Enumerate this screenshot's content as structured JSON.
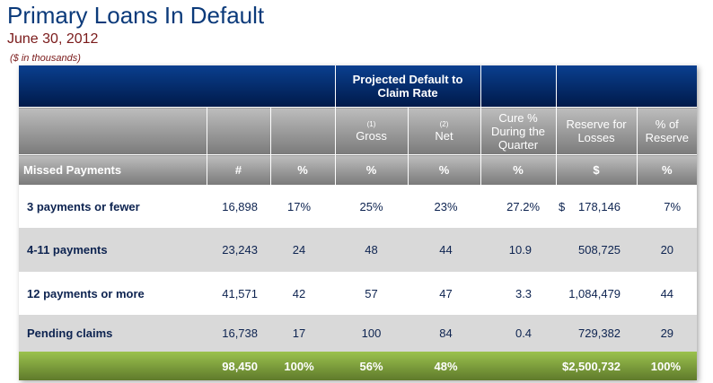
{
  "title": "Primary Loans In Default",
  "date": "June 30, 2012",
  "units": "($ in thousands)",
  "header": {
    "group": "Projected Default to Claim Rate",
    "gross": "Gross",
    "gross_note": "(1)",
    "net": "Net",
    "net_note": "(2)",
    "cure": "Cure % During the Quarter",
    "reserve": "Reserve for Losses",
    "pct_reserve": "% of Reserve",
    "missed": "Missed Payments",
    "units": [
      "#",
      "%",
      "%",
      "%",
      "%",
      "$",
      "%"
    ]
  },
  "rows": [
    {
      "label": "3 payments or fewer",
      "count": "16,898",
      "pct": "17%",
      "gross": "25%",
      "net": "23%",
      "cure": "27.2%",
      "dollar": "$",
      "reserve": "178,146",
      "pct_reserve": "7%"
    },
    {
      "label": "4-11 payments",
      "count": "23,243",
      "pct": "24",
      "gross": "48",
      "net": "44",
      "cure": "10.9",
      "reserve": "508,725",
      "pct_reserve": "20"
    },
    {
      "label": "12 payments or more",
      "count": "41,571",
      "pct": "42",
      "gross": "57",
      "net": "47",
      "cure": "3.3",
      "reserve": "1,084,479",
      "pct_reserve": "44"
    },
    {
      "label": "Pending claims",
      "count": "16,738",
      "pct": "17",
      "gross": "100",
      "net": "84",
      "cure": "0.4",
      "reserve": "729,382",
      "pct_reserve": "29"
    }
  ],
  "total": {
    "count": "98,450",
    "pct": "100%",
    "gross": "56%",
    "net": "48%",
    "reserve": "$2,500,732",
    "pct_reserve": "100%"
  },
  "colors": {
    "header_blue": "#002060",
    "header_gray": "#8c8c8c",
    "total_green": "#7a9d3a",
    "text_navy": "#0d2350"
  }
}
